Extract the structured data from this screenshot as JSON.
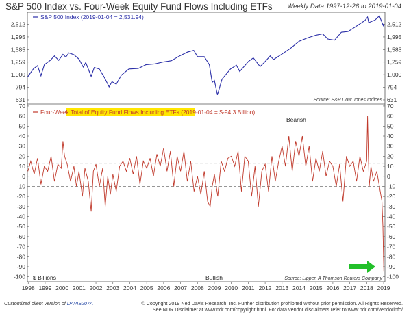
{
  "title": "S&P 500 Index vs. Four-Week Equity Fund Flows Including ETFs",
  "subtitle": "Weekly Data 1997-12-26 to 2019-01-04",
  "footer": {
    "custom_prefix": "Customized client version of",
    "custom_code": "DAVIS207A",
    "copyright_line1": "© Copyright 2019 Ned Davis Research, Inc. Further distribution prohibited without prior permission. All Rights Reserved.",
    "copyright_line2": "See NDR Disclaimer at www.ndr.com/copyright.html. For data vendor disclaimers refer to www.ndr.com/vendorinfo/"
  },
  "colors": {
    "sp500": "#2b2fa8",
    "flows": "#c0392b",
    "highlight": "#ffe600",
    "arrow": "#22c02a",
    "dashed": "#888888"
  },
  "arrow_icon": "green-right-arrow",
  "chart_data": [
    {
      "type": "line",
      "scale": "log",
      "legend": "S&P 500 Index (2019-01-04 = 2,531.94)",
      "source": "Source:  S&P Dow Jones Indices",
      "yticks": [
        631,
        794,
        1000,
        1259,
        1585,
        1995,
        2512
      ],
      "ytick_labels": [
        "631",
        "794",
        "1,000",
        "1,259",
        "1,585",
        "1,995",
        "2,512"
      ],
      "ylim": [
        600,
        3050
      ],
      "series": [
        {
          "name": "S&P 500 Index",
          "x": [
            1997.98,
            1998.3,
            1998.55,
            1998.75,
            1998.95,
            1999.3,
            1999.55,
            1999.8,
            2000.05,
            2000.22,
            2000.4,
            2000.7,
            2001.0,
            2001.25,
            2001.4,
            2001.72,
            2001.9,
            2002.2,
            2002.5,
            2002.78,
            2002.95,
            2003.2,
            2003.5,
            2003.95,
            2004.5,
            2004.95,
            2005.5,
            2005.95,
            2006.45,
            2006.95,
            2007.4,
            2007.78,
            2008.0,
            2008.4,
            2008.7,
            2008.87,
            2009.0,
            2009.18,
            2009.45,
            2009.95,
            2010.3,
            2010.5,
            2011.0,
            2011.3,
            2011.7,
            2011.95,
            2012.3,
            2012.5,
            2013.0,
            2013.5,
            2014.0,
            2014.5,
            2015.0,
            2015.4,
            2015.7,
            2016.1,
            2016.5,
            2016.9,
            2017.3,
            2017.9,
            2018.05,
            2018.12,
            2018.5,
            2018.75,
            2018.98,
            2019.01
          ],
          "values": [
            965,
            1110,
            1180,
            980,
            1200,
            1300,
            1410,
            1300,
            1450,
            1380,
            1490,
            1440,
            1330,
            1150,
            1250,
            970,
            1140,
            1110,
            950,
            800,
            880,
            840,
            990,
            1110,
            1120,
            1200,
            1220,
            1260,
            1290,
            1410,
            1510,
            1560,
            1390,
            1390,
            1200,
            870,
            900,
            690,
            920,
            1110,
            1190,
            1060,
            1270,
            1360,
            1160,
            1250,
            1410,
            1320,
            1460,
            1620,
            1840,
            1960,
            2060,
            2110,
            1920,
            1880,
            2170,
            2200,
            2380,
            2690,
            2870,
            2590,
            2720,
            2930,
            2450,
            2532
          ]
        }
      ]
    },
    {
      "type": "line",
      "legend_prefix": "Four-Week ",
      "legend_highlight": "Total of Equity Fund Flows Including ETFs",
      "legend_suffix": " (2019-01-04 = $-94.3 Billion)",
      "ylabel": "$ Billions",
      "annotations": [
        "Bearish",
        "Bullish"
      ],
      "source": "Source:  Lipper, A Thomson Reuters Company",
      "yticks": [
        70,
        60,
        50,
        40,
        30,
        20,
        10,
        0,
        -10,
        -20,
        -30,
        -40,
        -50,
        -60,
        -70,
        -80,
        -90,
        -100
      ],
      "ylim": [
        -105,
        72
      ],
      "reference_lines": [
        13,
        -10
      ],
      "x_ticks": [
        "1998",
        "1999",
        "2000",
        "2001",
        "2002",
        "2003",
        "2004",
        "2005",
        "2006",
        "2007",
        "2008",
        "2009",
        "2010",
        "2011",
        "2012",
        "2013",
        "2014",
        "2015",
        "2016",
        "2017",
        "2018",
        "2019"
      ],
      "series": [
        {
          "name": "Four-Week Total of Equity Fund Flows Including ETFs",
          "x": [
            1997.98,
            1998.15,
            1998.35,
            1998.55,
            1998.75,
            1998.95,
            1999.15,
            1999.35,
            1999.55,
            1999.75,
            1999.95,
            2000.05,
            2000.15,
            2000.3,
            2000.5,
            2000.7,
            2000.85,
            2001.0,
            2001.2,
            2001.35,
            2001.55,
            2001.72,
            2001.85,
            2002.0,
            2002.2,
            2002.4,
            2002.55,
            2002.7,
            2002.85,
            2003.0,
            2003.2,
            2003.4,
            2003.6,
            2003.8,
            2004.0,
            2004.2,
            2004.4,
            2004.6,
            2004.8,
            2005.0,
            2005.2,
            2005.4,
            2005.6,
            2005.8,
            2006.0,
            2006.2,
            2006.4,
            2006.6,
            2006.8,
            2007.0,
            2007.2,
            2007.4,
            2007.6,
            2007.8,
            2008.0,
            2008.2,
            2008.4,
            2008.6,
            2008.75,
            2008.87,
            2009.0,
            2009.2,
            2009.4,
            2009.6,
            2009.8,
            2010.0,
            2010.2,
            2010.4,
            2010.6,
            2010.8,
            2011.0,
            2011.2,
            2011.4,
            2011.6,
            2011.8,
            2012.0,
            2012.2,
            2012.4,
            2012.6,
            2012.8,
            2013.0,
            2013.2,
            2013.4,
            2013.6,
            2013.8,
            2014.0,
            2014.2,
            2014.4,
            2014.6,
            2014.8,
            2015.0,
            2015.2,
            2015.4,
            2015.6,
            2015.8,
            2016.0,
            2016.2,
            2016.4,
            2016.6,
            2016.8,
            2017.0,
            2017.2,
            2017.4,
            2017.6,
            2017.8,
            2018.0,
            2018.05,
            2018.1,
            2018.15,
            2018.25,
            2018.4,
            2018.6,
            2018.8,
            2018.9,
            2018.96,
            2019.01
          ],
          "values": [
            5,
            15,
            2,
            18,
            -8,
            10,
            5,
            20,
            -5,
            12,
            8,
            35,
            20,
            12,
            -5,
            10,
            -10,
            5,
            -20,
            8,
            -5,
            -35,
            5,
            12,
            -10,
            8,
            -30,
            0,
            -18,
            2,
            -15,
            10,
            15,
            5,
            18,
            2,
            20,
            -8,
            15,
            8,
            18,
            0,
            22,
            10,
            28,
            5,
            25,
            -10,
            20,
            5,
            25,
            -5,
            15,
            -15,
            0,
            -18,
            5,
            -25,
            -30,
            -10,
            2,
            -20,
            15,
            5,
            18,
            20,
            10,
            25,
            -15,
            20,
            15,
            -20,
            10,
            -30,
            5,
            12,
            -15,
            20,
            -5,
            15,
            30,
            10,
            40,
            5,
            35,
            20,
            40,
            10,
            30,
            -5,
            18,
            5,
            25,
            0,
            15,
            10,
            -10,
            12,
            -25,
            20,
            10,
            15,
            -5,
            20,
            5,
            15,
            60,
            20,
            -10,
            10,
            -5,
            5,
            -15,
            -25,
            -50,
            -94.3
          ]
        }
      ]
    }
  ]
}
